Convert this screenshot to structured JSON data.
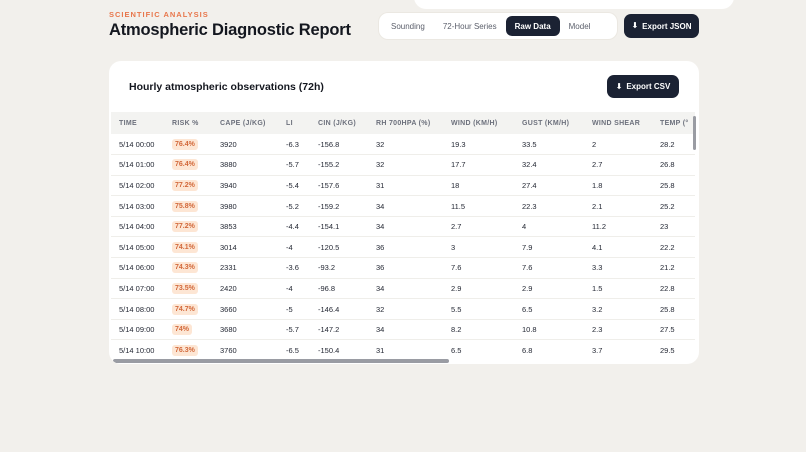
{
  "header": {
    "eyebrow": "SCIENTIFIC ANALYSIS",
    "title": "Atmospheric Diagnostic Report",
    "tabs": [
      {
        "label": "Sounding",
        "active": false
      },
      {
        "label": "72-Hour Series",
        "active": false
      },
      {
        "label": "Raw Data",
        "active": true
      },
      {
        "label": "Model",
        "active": false
      }
    ],
    "export_json_label": "Export JSON",
    "export_icon": "download-arrow-icon"
  },
  "card": {
    "title": "Hourly atmospheric observations (72h)",
    "export_csv_label": "Export CSV"
  },
  "table": {
    "columns": [
      "TIME",
      "RISK %",
      "CAPE (J/KG)",
      "LI",
      "CIN (J/KG)",
      "RH 700HPA (%)",
      "WIND (KM/H)",
      "GUST (KM/H)",
      "WIND SHEAR",
      "TEMP (°"
    ],
    "rows": [
      [
        "5/14 00:00",
        "76.4%",
        "3920",
        "-6.3",
        "-156.8",
        "32",
        "19.3",
        "33.5",
        "2",
        "28.2"
      ],
      [
        "5/14 01:00",
        "76.4%",
        "3880",
        "-5.7",
        "-155.2",
        "32",
        "17.7",
        "32.4",
        "2.7",
        "26.8"
      ],
      [
        "5/14 02:00",
        "77.2%",
        "3940",
        "-5.4",
        "-157.6",
        "31",
        "18",
        "27.4",
        "1.8",
        "25.8"
      ],
      [
        "5/14 03:00",
        "75.8%",
        "3980",
        "-5.2",
        "-159.2",
        "34",
        "11.5",
        "22.3",
        "2.1",
        "25.2"
      ],
      [
        "5/14 04:00",
        "77.2%",
        "3853",
        "-4.4",
        "-154.1",
        "34",
        "2.7",
        "4",
        "11.2",
        "23"
      ],
      [
        "5/14 05:00",
        "74.1%",
        "3014",
        "-4",
        "-120.5",
        "36",
        "3",
        "7.9",
        "4.1",
        "22.2"
      ],
      [
        "5/14 06:00",
        "74.3%",
        "2331",
        "-3.6",
        "-93.2",
        "36",
        "7.6",
        "7.6",
        "3.3",
        "21.2"
      ],
      [
        "5/14 07:00",
        "73.5%",
        "2420",
        "-4",
        "-96.8",
        "34",
        "2.9",
        "2.9",
        "1.5",
        "22.8"
      ],
      [
        "5/14 08:00",
        "74.7%",
        "3660",
        "-5",
        "-146.4",
        "32",
        "5.5",
        "6.5",
        "3.2",
        "25.8"
      ],
      [
        "5/14 09:00",
        "74%",
        "3680",
        "-5.7",
        "-147.2",
        "34",
        "8.2",
        "10.8",
        "2.3",
        "27.5"
      ],
      [
        "5/14 10:00",
        "76.3%",
        "3760",
        "-6.5",
        "-150.4",
        "31",
        "6.5",
        "6.8",
        "3.7",
        "29.5"
      ]
    ]
  },
  "colors": {
    "accent": "#e8764b",
    "dark": "#1b2233",
    "badge_bg": "#fde6d4",
    "badge_text": "#d2683a"
  }
}
